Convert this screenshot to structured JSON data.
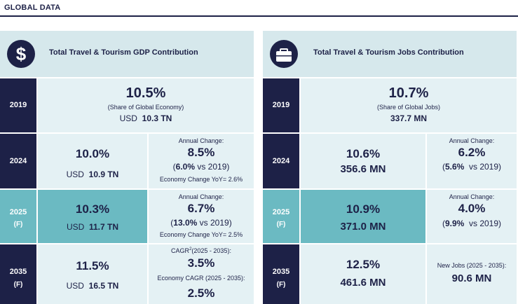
{
  "header": {
    "title": "GLOBAL DATA"
  },
  "gdp": {
    "title": "Total Travel & Tourism GDP Contribution",
    "icon": "dollar-sign-icon",
    "rows": {
      "r2019": {
        "year": "2019",
        "value": "10.5%",
        "share_label": "(Share of Global Economy)",
        "amount_prefix": "USD",
        "amount": "10.3 TN"
      },
      "r2024": {
        "year": "2024",
        "value": "10.0%",
        "amount_prefix": "USD",
        "amount": "10.9 TN",
        "change_label": "Annual Change:",
        "change_value": "8.5%",
        "vs_open": "(",
        "vs_value": "6.0%",
        "vs_text": " vs 2019)",
        "economy_change": "Economy Change YoY= 2.6%"
      },
      "r2025": {
        "year": "2025",
        "forecast": "(F)",
        "value": "10.3%",
        "amount_prefix": "USD",
        "amount": "11.7 TN",
        "change_label": "Annual Change:",
        "change_value": "6.7%",
        "vs_open": "(",
        "vs_value": "13.0%",
        "vs_text": " vs 2019)",
        "economy_change": "Economy Change YoY= 2.5%"
      },
      "r2035": {
        "year": "2035",
        "forecast": "(F)",
        "value": "11.5%",
        "amount_prefix": "USD",
        "amount": "16.5 TN",
        "cagr_label": "CAGR",
        "cagr_sup": "2",
        "cagr_range": "(2025 - 2035):",
        "cagr_value": "3.5%",
        "economy_cagr_label": "Economy CAGR (2025 - 2035):",
        "economy_cagr_value": "2.5%"
      }
    }
  },
  "jobs": {
    "title": "Total Travel & Tourism Jobs Contribution",
    "icon": "briefcase-icon",
    "rows": {
      "r2019": {
        "year": "2019",
        "value": "10.7%",
        "share_label": "(Share of Global Jobs)",
        "amount": "337.7 MN"
      },
      "r2024": {
        "year": "2024",
        "value": "10.6%",
        "amount": "356.6 MN",
        "change_label": "Annual Change:",
        "change_value": "6.2%",
        "vs_open": "(",
        "vs_value": "5.6%",
        "vs_text": "  vs 2019)"
      },
      "r2025": {
        "year": "2025",
        "forecast": "(F)",
        "value": "10.9%",
        "amount": "371.0 MN",
        "change_label": "Annual Change:",
        "change_value": "4.0%",
        "vs_open": "(",
        "vs_value": "9.9%",
        "vs_text": "  vs 2019)"
      },
      "r2035": {
        "year": "2035",
        "forecast": "(F)",
        "value": "12.5%",
        "amount": "461.6 MN",
        "new_jobs_label": "New Jobs (2025 - 2035):",
        "new_jobs_value": "90.6 MN"
      }
    }
  }
}
